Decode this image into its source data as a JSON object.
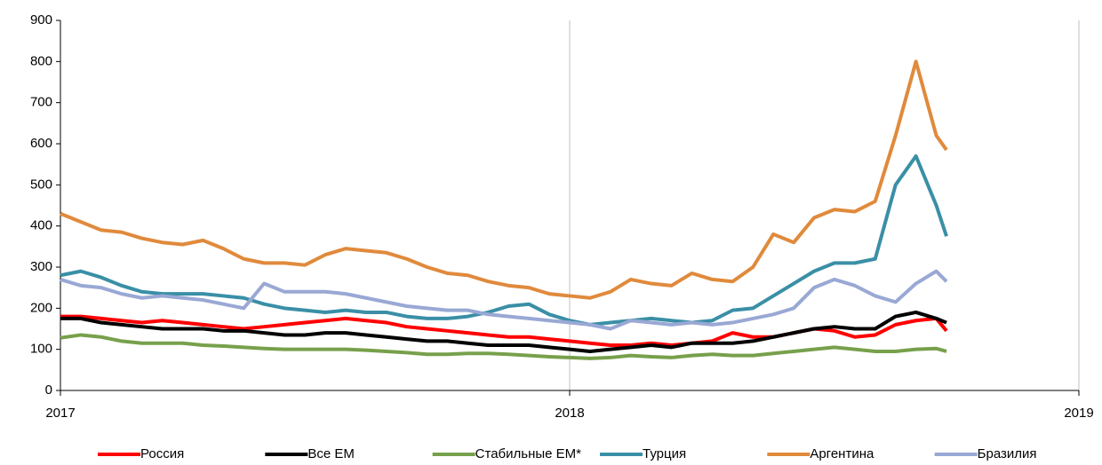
{
  "chart_data": {
    "type": "line",
    "x": [
      2017.0,
      2017.04,
      2017.08,
      2017.12,
      2017.16,
      2017.2,
      2017.24,
      2017.28,
      2017.32,
      2017.36,
      2017.4,
      2017.44,
      2017.48,
      2017.52,
      2017.56,
      2017.6,
      2017.64,
      2017.68,
      2017.72,
      2017.76,
      2017.8,
      2017.84,
      2017.88,
      2017.92,
      2017.96,
      2018.0,
      2018.04,
      2018.08,
      2018.12,
      2018.16,
      2018.2,
      2018.24,
      2018.28,
      2018.32,
      2018.36,
      2018.4,
      2018.44,
      2018.48,
      2018.52,
      2018.56,
      2018.6,
      2018.64,
      2018.68,
      2018.72,
      2018.74
    ],
    "series": [
      {
        "name": "Россия",
        "color": "#ff0000",
        "values": [
          180,
          180,
          175,
          170,
          165,
          170,
          165,
          160,
          155,
          150,
          155,
          160,
          165,
          170,
          175,
          170,
          165,
          155,
          150,
          145,
          140,
          135,
          130,
          130,
          125,
          120,
          115,
          110,
          110,
          115,
          110,
          115,
          120,
          140,
          130,
          130,
          140,
          150,
          145,
          130,
          135,
          160,
          170,
          175,
          145
        ]
      },
      {
        "name": "Все ЕМ",
        "color": "#000000",
        "values": [
          175,
          175,
          165,
          160,
          155,
          150,
          150,
          150,
          145,
          145,
          140,
          135,
          135,
          140,
          140,
          135,
          130,
          125,
          120,
          120,
          115,
          110,
          110,
          110,
          105,
          100,
          95,
          100,
          105,
          110,
          105,
          115,
          115,
          115,
          120,
          130,
          140,
          150,
          155,
          150,
          150,
          180,
          190,
          175,
          165
        ]
      },
      {
        "name": "Стабильные ЕМ*",
        "color": "#77a04b",
        "values": [
          128,
          135,
          130,
          120,
          115,
          115,
          115,
          110,
          108,
          105,
          102,
          100,
          100,
          100,
          100,
          98,
          95,
          92,
          88,
          88,
          90,
          90,
          88,
          85,
          82,
          80,
          78,
          80,
          85,
          82,
          80,
          85,
          88,
          85,
          85,
          90,
          95,
          100,
          105,
          100,
          95,
          95,
          100,
          102,
          95
        ]
      },
      {
        "name": "Турция",
        "color": "#3a8fa6",
        "values": [
          280,
          290,
          275,
          255,
          240,
          235,
          235,
          235,
          230,
          225,
          210,
          200,
          195,
          190,
          195,
          190,
          190,
          180,
          175,
          175,
          180,
          190,
          205,
          210,
          185,
          170,
          160,
          165,
          170,
          175,
          170,
          165,
          170,
          195,
          200,
          230,
          260,
          290,
          310,
          310,
          320,
          500,
          570,
          450,
          375
        ]
      },
      {
        "name": "Аргентина",
        "color": "#e08a3c",
        "values": [
          430,
          410,
          390,
          385,
          370,
          360,
          355,
          365,
          345,
          320,
          310,
          310,
          305,
          330,
          345,
          340,
          335,
          320,
          300,
          285,
          280,
          265,
          255,
          250,
          235,
          230,
          225,
          240,
          270,
          260,
          255,
          285,
          270,
          265,
          300,
          380,
          360,
          420,
          440,
          435,
          460,
          620,
          800,
          620,
          585
        ]
      },
      {
        "name": "Бразилия",
        "color": "#99a8d4",
        "values": [
          270,
          255,
          250,
          235,
          225,
          230,
          225,
          220,
          210,
          200,
          260,
          240,
          240,
          240,
          235,
          225,
          215,
          205,
          200,
          195,
          195,
          185,
          180,
          175,
          170,
          165,
          160,
          150,
          170,
          165,
          160,
          165,
          160,
          165,
          175,
          185,
          200,
          250,
          270,
          255,
          230,
          215,
          260,
          290,
          265
        ]
      }
    ],
    "xlim": [
      2017,
      2019
    ],
    "xticks": [
      2017,
      2018,
      2019
    ],
    "ylim": [
      0,
      900
    ],
    "yticks": [
      0,
      100,
      200,
      300,
      400,
      500,
      600,
      700,
      800,
      900
    ],
    "grid": "x",
    "legend": "bottom"
  }
}
